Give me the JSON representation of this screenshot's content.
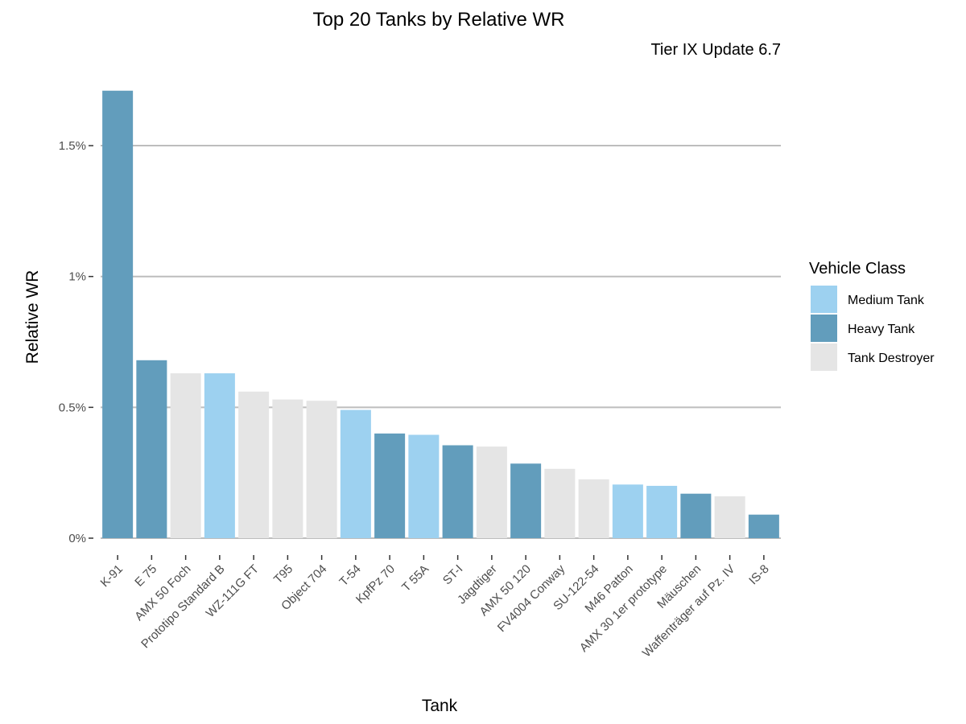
{
  "chart_data": {
    "type": "bar",
    "title": "Top 20 Tanks by Relative WR",
    "subtitle": "Tier IX Update 6.7",
    "xlabel": "Tank",
    "ylabel": "Relative WR",
    "ylim": [
      -0.04,
      1.72
    ],
    "yticks": [
      0,
      0.5,
      1,
      1.5
    ],
    "ytick_labels": [
      "0%",
      "0.5%",
      "1%",
      "1.5%"
    ],
    "grid": "horizontal major",
    "legend": {
      "title": "Vehicle Class",
      "position": "right",
      "entries": [
        {
          "name": "Medium Tank",
          "color": "#9dd1f0"
        },
        {
          "name": "Heavy Tank",
          "color": "#629dbc"
        },
        {
          "name": "Tank Destroyer",
          "color": "#e5e5e5"
        }
      ]
    },
    "categories": [
      "K-91",
      "E 75",
      "AMX 50 Foch",
      "Prototipo Standard B",
      "WZ-111G FT",
      "T95",
      "Object 704",
      "T-54",
      "KpfPz 70",
      "T 55A",
      "ST-I",
      "Jagdtiger",
      "AMX 50 120",
      "FV4004 Conway",
      "SU-122-54",
      "M46 Patton",
      "AMX 30 1er prototype",
      "Mäuschen",
      "Waffenträger auf Pz. IV",
      "IS-8"
    ],
    "values": [
      1.71,
      0.68,
      0.63,
      0.63,
      0.56,
      0.53,
      0.525,
      0.49,
      0.4,
      0.395,
      0.355,
      0.35,
      0.285,
      0.265,
      0.225,
      0.205,
      0.2,
      0.17,
      0.16,
      0.09
    ],
    "vehicle_class": [
      "Heavy Tank",
      "Heavy Tank",
      "Tank Destroyer",
      "Medium Tank",
      "Tank Destroyer",
      "Tank Destroyer",
      "Tank Destroyer",
      "Medium Tank",
      "Heavy Tank",
      "Medium Tank",
      "Heavy Tank",
      "Tank Destroyer",
      "Heavy Tank",
      "Tank Destroyer",
      "Tank Destroyer",
      "Medium Tank",
      "Medium Tank",
      "Heavy Tank",
      "Tank Destroyer",
      "Heavy Tank"
    ]
  }
}
